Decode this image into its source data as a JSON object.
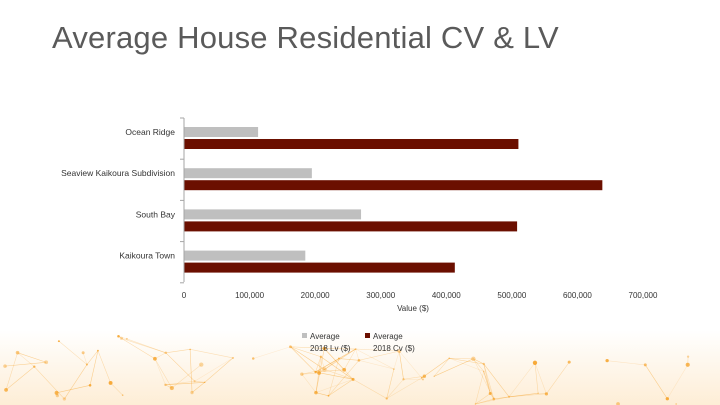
{
  "slide": {
    "title": "Average House Residential CV & LV"
  },
  "colors": {
    "lv": "#bfbfbf",
    "cv": "#6b0f00",
    "title": "#5a5a5a",
    "axis": "#a6a6a6",
    "glow": "#f59c1a"
  },
  "chart_data": {
    "type": "bar",
    "orientation": "horizontal",
    "title": "",
    "xlabel": "Value ($)",
    "ylabel": "",
    "xlim": [
      0,
      700000
    ],
    "xticks": [
      0,
      100000,
      200000,
      300000,
      400000,
      500000,
      600000,
      700000
    ],
    "xtick_labels": [
      "0",
      "100,000",
      "200,000",
      "300,000",
      "400,000",
      "500,000",
      "600,000",
      "700,000"
    ],
    "categories": [
      "Ocean Ridge",
      "Seaview Kaikoura Subdivision",
      "South Bay",
      "Kaikoura Town"
    ],
    "series": [
      {
        "name": "Average 2018 Lv ($)",
        "legend_line1": "Average",
        "legend_line2": "2018 Lv ($)",
        "values": [
          113000,
          195000,
          270000,
          185000
        ]
      },
      {
        "name": "Average 2018 Cv ($)",
        "legend_line1": "Average",
        "legend_line2": "2018 Cv ($)",
        "values": [
          510000,
          638000,
          508000,
          413000
        ]
      }
    ],
    "grid": false,
    "legend": "bottom"
  }
}
